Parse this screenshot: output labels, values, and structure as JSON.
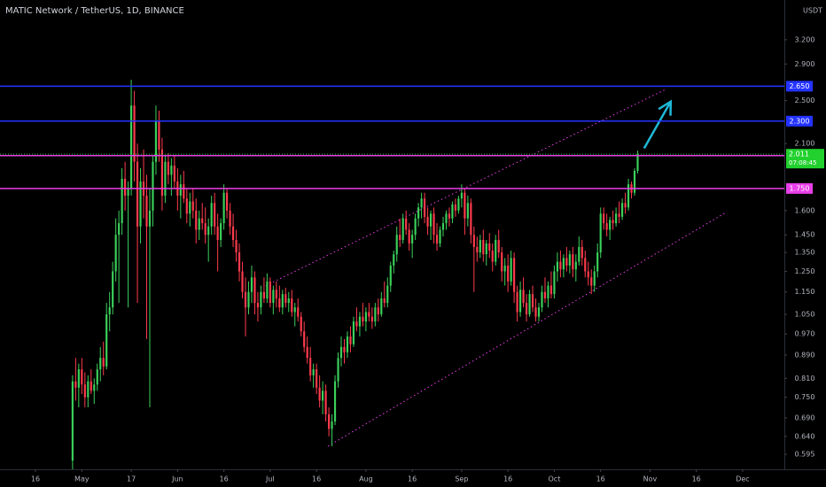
{
  "chart_data": {
    "type": "candlestick",
    "title": "MATIC Network / TetherUS, 1D, BINANCE",
    "currency": "USDT",
    "log": true,
    "ylim": [
      0.56,
      3.76
    ],
    "xlim": [
      -11.5,
      242.5
    ],
    "up_color": "#3bd15b",
    "down_color": "#ff3b4d",
    "yticks": [
      {
        "value": 3.2,
        "label": "3.200"
      },
      {
        "value": 2.9,
        "label": "2.900"
      },
      {
        "value": 2.5,
        "label": "2.500"
      },
      {
        "value": 2.1,
        "label": "2.100"
      },
      {
        "value": 1.6,
        "label": "1.600"
      },
      {
        "value": 1.45,
        "label": "1.450"
      },
      {
        "value": 1.35,
        "label": "1.350"
      },
      {
        "value": 1.25,
        "label": "1.250"
      },
      {
        "value": 1.15,
        "label": "1.150"
      },
      {
        "value": 1.05,
        "label": "1.050"
      },
      {
        "value": 0.97,
        "label": "0.970"
      },
      {
        "value": 0.89,
        "label": "0.890"
      },
      {
        "value": 0.81,
        "label": "0.810"
      },
      {
        "value": 0.75,
        "label": "0.750"
      },
      {
        "value": 0.69,
        "label": "0.690"
      },
      {
        "value": 0.64,
        "label": "0.640"
      },
      {
        "value": 0.595,
        "label": "0.595"
      }
    ],
    "xticks": [
      {
        "value": 0,
        "label": "16"
      },
      {
        "value": 15,
        "label": "May"
      },
      {
        "value": 31,
        "label": "17"
      },
      {
        "value": 46,
        "label": "Jun"
      },
      {
        "value": 61,
        "label": "16"
      },
      {
        "value": 76,
        "label": "Jul"
      },
      {
        "value": 91,
        "label": "16"
      },
      {
        "value": 107,
        "label": "Aug"
      },
      {
        "value": 122,
        "label": "16"
      },
      {
        "value": 138,
        "label": "Sep"
      },
      {
        "value": 153,
        "label": "16"
      },
      {
        "value": 168,
        "label": "Oct"
      },
      {
        "value": 183,
        "label": "16"
      },
      {
        "value": 199,
        "label": "Nov"
      },
      {
        "value": 214,
        "label": "16"
      },
      {
        "value": 229,
        "label": "Dec"
      }
    ],
    "price_lines": [
      {
        "value": 2.65,
        "label": "2.650",
        "color": "#2433ff"
      },
      {
        "value": 2.3,
        "label": "2.300",
        "color": "#2433ff"
      },
      {
        "value": 2.0,
        "label": "2.000",
        "color": "#e83ee8"
      },
      {
        "value": 1.75,
        "label": "1.750",
        "color": "#e83ee8"
      }
    ],
    "last_price": {
      "value": 2.011,
      "label": "2.011",
      "countdown": "07:08:45",
      "color": "#22d12e"
    },
    "trendlines": [
      {
        "x": [
          74.6,
          204.3
        ],
        "y": [
          1.18,
          2.62
        ],
        "color": "#e83ee8"
      },
      {
        "x": [
          94.7,
          223.8
        ],
        "y": [
          0.615,
          1.59
        ],
        "color": "#e83ee8"
      }
    ],
    "arrow": {
      "x": [
        197.1,
        205.7
      ],
      "y": [
        2.06,
        2.49
      ],
      "color": "#1fb8d6"
    },
    "ohlc": [
      [
        12,
        0.58,
        0.82,
        0.56,
        0.8
      ],
      [
        13,
        0.8,
        0.88,
        0.74,
        0.78
      ],
      [
        14,
        0.78,
        0.86,
        0.72,
        0.84
      ],
      [
        15,
        0.84,
        0.88,
        0.76,
        0.79
      ],
      [
        16,
        0.79,
        0.83,
        0.72,
        0.75
      ],
      [
        17,
        0.75,
        0.82,
        0.72,
        0.8
      ],
      [
        18,
        0.8,
        0.84,
        0.76,
        0.77
      ],
      [
        19,
        0.77,
        0.81,
        0.73,
        0.79
      ],
      [
        20,
        0.79,
        0.86,
        0.77,
        0.84
      ],
      [
        21,
        0.84,
        0.92,
        0.8,
        0.88
      ],
      [
        22,
        0.88,
        0.94,
        0.82,
        0.85
      ],
      [
        23,
        0.85,
        1.1,
        0.84,
        1.05
      ],
      [
        24,
        1.05,
        1.15,
        0.98,
        1.08
      ],
      [
        25,
        1.08,
        1.3,
        1.05,
        1.25
      ],
      [
        26,
        1.25,
        1.55,
        1.2,
        1.45
      ],
      [
        27,
        1.45,
        1.6,
        1.1,
        1.52
      ],
      [
        28,
        1.52,
        1.9,
        1.45,
        1.82
      ],
      [
        29,
        1.82,
        1.95,
        1.6,
        1.7
      ],
      [
        30,
        1.7,
        1.8,
        1.08,
        1.75
      ],
      [
        31,
        1.75,
        2.72,
        1.7,
        2.45
      ],
      [
        32,
        2.45,
        2.6,
        1.8,
        1.95
      ],
      [
        33,
        1.95,
        2.1,
        1.1,
        1.5
      ],
      [
        34,
        1.5,
        1.9,
        1.4,
        1.8
      ],
      [
        35,
        1.8,
        2.05,
        1.55,
        1.7
      ],
      [
        36,
        1.7,
        1.85,
        0.95,
        1.5
      ],
      [
        37,
        1.5,
        1.75,
        0.72,
        1.6
      ],
      [
        38,
        1.6,
        2.0,
        1.5,
        1.95
      ],
      [
        39,
        1.95,
        2.45,
        1.85,
        2.3
      ],
      [
        40,
        2.3,
        2.4,
        1.95,
        2.05
      ],
      [
        41,
        2.05,
        2.15,
        1.6,
        1.7
      ],
      [
        42,
        1.7,
        2.0,
        1.65,
        1.95
      ],
      [
        43,
        1.95,
        2.02,
        1.78,
        1.85
      ],
      [
        44,
        1.85,
        1.98,
        1.7,
        1.92
      ],
      [
        45,
        1.92,
        2.0,
        1.75,
        1.8
      ],
      [
        46,
        1.8,
        1.9,
        1.6,
        1.7
      ],
      [
        47,
        1.7,
        1.85,
        1.55,
        1.78
      ],
      [
        48,
        1.78,
        1.88,
        1.65,
        1.68
      ],
      [
        49,
        1.68,
        1.75,
        1.52,
        1.58
      ],
      [
        50,
        1.58,
        1.72,
        1.5,
        1.66
      ],
      [
        51,
        1.66,
        1.75,
        1.55,
        1.6
      ],
      [
        52,
        1.6,
        1.68,
        1.4,
        1.48
      ],
      [
        53,
        1.48,
        1.6,
        1.42,
        1.55
      ],
      [
        54,
        1.55,
        1.65,
        1.48,
        1.52
      ],
      [
        55,
        1.52,
        1.62,
        1.4,
        1.45
      ],
      [
        56,
        1.45,
        1.55,
        1.3,
        1.5
      ],
      [
        57,
        1.5,
        1.7,
        1.45,
        1.65
      ],
      [
        58,
        1.65,
        1.72,
        1.45,
        1.5
      ],
      [
        59,
        1.5,
        1.58,
        1.25,
        1.42
      ],
      [
        60,
        1.42,
        1.55,
        1.38,
        1.52
      ],
      [
        61,
        1.52,
        1.78,
        1.48,
        1.72
      ],
      [
        62,
        1.72,
        1.75,
        1.55,
        1.6
      ],
      [
        63,
        1.6,
        1.65,
        1.45,
        1.5
      ],
      [
        64,
        1.5,
        1.58,
        1.38,
        1.42
      ],
      [
        65,
        1.42,
        1.48,
        1.3,
        1.35
      ],
      [
        66,
        1.35,
        1.4,
        1.2,
        1.25
      ],
      [
        67,
        1.25,
        1.3,
        1.12,
        1.15
      ],
      [
        68,
        1.15,
        1.22,
        0.96,
        1.08
      ],
      [
        69,
        1.08,
        1.2,
        1.05,
        1.15
      ],
      [
        70,
        1.15,
        1.28,
        1.1,
        1.22
      ],
      [
        71,
        1.22,
        1.25,
        1.05,
        1.1
      ],
      [
        72,
        1.1,
        1.15,
        1.02,
        1.08
      ],
      [
        73,
        1.08,
        1.18,
        1.05,
        1.15
      ],
      [
        74,
        1.15,
        1.22,
        1.1,
        1.12
      ],
      [
        75,
        1.12,
        1.24,
        1.1,
        1.2
      ],
      [
        76,
        1.2,
        1.22,
        1.08,
        1.1
      ],
      [
        77,
        1.1,
        1.18,
        1.05,
        1.16
      ],
      [
        78,
        1.16,
        1.2,
        1.08,
        1.12
      ],
      [
        79,
        1.12,
        1.18,
        1.06,
        1.08
      ],
      [
        80,
        1.08,
        1.16,
        1.05,
        1.14
      ],
      [
        81,
        1.14,
        1.17,
        1.08,
        1.1
      ],
      [
        82,
        1.1,
        1.15,
        1.06,
        1.12
      ],
      [
        83,
        1.12,
        1.16,
        1.04,
        1.06
      ],
      [
        84,
        1.06,
        1.1,
        1.0,
        1.08
      ],
      [
        85,
        1.08,
        1.12,
        1.02,
        1.04
      ],
      [
        86,
        1.04,
        1.06,
        0.96,
        0.98
      ],
      [
        87,
        0.98,
        1.02,
        0.9,
        0.92
      ],
      [
        88,
        0.92,
        0.96,
        0.86,
        0.88
      ],
      [
        89,
        0.88,
        0.92,
        0.8,
        0.82
      ],
      [
        90,
        0.82,
        0.86,
        0.78,
        0.84
      ],
      [
        91,
        0.84,
        0.86,
        0.76,
        0.78
      ],
      [
        92,
        0.78,
        0.82,
        0.72,
        0.74
      ],
      [
        93,
        0.74,
        0.8,
        0.7,
        0.77
      ],
      [
        94,
        0.77,
        0.79,
        0.68,
        0.7
      ],
      [
        95,
        0.7,
        0.72,
        0.64,
        0.66
      ],
      [
        96,
        0.66,
        0.7,
        0.615,
        0.68
      ],
      [
        97,
        0.68,
        0.82,
        0.67,
        0.8
      ],
      [
        98,
        0.8,
        0.9,
        0.78,
        0.88
      ],
      [
        99,
        0.88,
        0.96,
        0.85,
        0.92
      ],
      [
        100,
        0.92,
        0.95,
        0.86,
        0.9
      ],
      [
        101,
        0.9,
        0.98,
        0.88,
        0.96
      ],
      [
        102,
        0.96,
        1.0,
        0.9,
        0.93
      ],
      [
        103,
        0.93,
        1.04,
        0.92,
        1.02
      ],
      [
        104,
        1.02,
        1.08,
        0.98,
        1.0
      ],
      [
        105,
        1.0,
        1.06,
        0.96,
        1.04
      ],
      [
        106,
        1.04,
        1.1,
        1.0,
        1.02
      ],
      [
        107,
        1.02,
        1.08,
        0.98,
        1.06
      ],
      [
        108,
        1.06,
        1.1,
        1.02,
        1.04
      ],
      [
        109,
        1.04,
        1.08,
        0.99,
        1.02
      ],
      [
        110,
        1.02,
        1.1,
        1.0,
        1.08
      ],
      [
        111,
        1.08,
        1.12,
        1.02,
        1.05
      ],
      [
        112,
        1.05,
        1.15,
        1.04,
        1.12
      ],
      [
        113,
        1.12,
        1.2,
        1.08,
        1.1
      ],
      [
        114,
        1.1,
        1.22,
        1.08,
        1.18
      ],
      [
        115,
        1.18,
        1.3,
        1.15,
        1.28
      ],
      [
        116,
        1.28,
        1.36,
        1.24,
        1.34
      ],
      [
        117,
        1.34,
        1.5,
        1.3,
        1.45
      ],
      [
        118,
        1.45,
        1.55,
        1.38,
        1.42
      ],
      [
        119,
        1.42,
        1.58,
        1.4,
        1.55
      ],
      [
        120,
        1.55,
        1.6,
        1.45,
        1.48
      ],
      [
        121,
        1.48,
        1.52,
        1.36,
        1.4
      ],
      [
        122,
        1.4,
        1.48,
        1.32,
        1.45
      ],
      [
        123,
        1.45,
        1.58,
        1.42,
        1.55
      ],
      [
        124,
        1.55,
        1.65,
        1.5,
        1.62
      ],
      [
        125,
        1.62,
        1.72,
        1.55,
        1.68
      ],
      [
        126,
        1.68,
        1.72,
        1.52,
        1.56
      ],
      [
        127,
        1.56,
        1.62,
        1.45,
        1.5
      ],
      [
        128,
        1.5,
        1.6,
        1.42,
        1.58
      ],
      [
        129,
        1.58,
        1.62,
        1.4,
        1.45
      ],
      [
        130,
        1.45,
        1.52,
        1.36,
        1.4
      ],
      [
        131,
        1.4,
        1.5,
        1.38,
        1.48
      ],
      [
        132,
        1.48,
        1.56,
        1.44,
        1.52
      ],
      [
        133,
        1.52,
        1.6,
        1.48,
        1.58
      ],
      [
        134,
        1.58,
        1.62,
        1.5,
        1.55
      ],
      [
        135,
        1.55,
        1.66,
        1.52,
        1.64
      ],
      [
        136,
        1.64,
        1.68,
        1.56,
        1.6
      ],
      [
        137,
        1.6,
        1.7,
        1.58,
        1.68
      ],
      [
        138,
        1.68,
        1.78,
        1.62,
        1.72
      ],
      [
        139,
        1.72,
        1.75,
        1.45,
        1.55
      ],
      [
        140,
        1.55,
        1.7,
        1.5,
        1.65
      ],
      [
        141,
        1.65,
        1.68,
        1.4,
        1.45
      ],
      [
        142,
        1.45,
        1.5,
        1.15,
        1.38
      ],
      [
        143,
        1.38,
        1.44,
        1.3,
        1.35
      ],
      [
        144,
        1.35,
        1.45,
        1.32,
        1.42
      ],
      [
        145,
        1.42,
        1.48,
        1.3,
        1.34
      ],
      [
        146,
        1.34,
        1.42,
        1.28,
        1.4
      ],
      [
        147,
        1.4,
        1.46,
        1.32,
        1.36
      ],
      [
        148,
        1.36,
        1.4,
        1.25,
        1.3
      ],
      [
        149,
        1.3,
        1.45,
        1.28,
        1.42
      ],
      [
        150,
        1.42,
        1.48,
        1.32,
        1.35
      ],
      [
        151,
        1.35,
        1.38,
        1.2,
        1.25
      ],
      [
        152,
        1.25,
        1.32,
        1.18,
        1.28
      ],
      [
        153,
        1.28,
        1.34,
        1.15,
        1.2
      ],
      [
        154,
        1.2,
        1.36,
        1.18,
        1.32
      ],
      [
        155,
        1.32,
        1.35,
        1.1,
        1.15
      ],
      [
        156,
        1.15,
        1.18,
        1.02,
        1.06
      ],
      [
        157,
        1.06,
        1.2,
        1.04,
        1.16
      ],
      [
        158,
        1.16,
        1.22,
        1.08,
        1.1
      ],
      [
        159,
        1.1,
        1.14,
        1.02,
        1.05
      ],
      [
        160,
        1.05,
        1.16,
        1.04,
        1.14
      ],
      [
        161,
        1.14,
        1.18,
        1.06,
        1.08
      ],
      [
        162,
        1.08,
        1.12,
        1.02,
        1.04
      ],
      [
        163,
        1.04,
        1.1,
        1.02,
        1.08
      ],
      [
        164,
        1.08,
        1.18,
        1.06,
        1.15
      ],
      [
        165,
        1.15,
        1.22,
        1.1,
        1.12
      ],
      [
        166,
        1.12,
        1.2,
        1.08,
        1.18
      ],
      [
        167,
        1.18,
        1.25,
        1.12,
        1.14
      ],
      [
        168,
        1.14,
        1.28,
        1.12,
        1.25
      ],
      [
        169,
        1.25,
        1.35,
        1.2,
        1.3
      ],
      [
        170,
        1.3,
        1.36,
        1.22,
        1.26
      ],
      [
        171,
        1.26,
        1.34,
        1.22,
        1.32
      ],
      [
        172,
        1.32,
        1.38,
        1.25,
        1.28
      ],
      [
        173,
        1.28,
        1.36,
        1.24,
        1.34
      ],
      [
        174,
        1.34,
        1.38,
        1.22,
        1.26
      ],
      [
        175,
        1.26,
        1.34,
        1.2,
        1.3
      ],
      [
        176,
        1.3,
        1.44,
        1.28,
        1.38
      ],
      [
        177,
        1.38,
        1.42,
        1.28,
        1.32
      ],
      [
        178,
        1.32,
        1.36,
        1.22,
        1.25
      ],
      [
        179,
        1.25,
        1.3,
        1.18,
        1.22
      ],
      [
        180,
        1.22,
        1.26,
        1.14,
        1.18
      ],
      [
        181,
        1.18,
        1.28,
        1.15,
        1.25
      ],
      [
        182,
        1.25,
        1.4,
        1.22,
        1.35
      ],
      [
        183,
        1.35,
        1.62,
        1.32,
        1.58
      ],
      [
        184,
        1.58,
        1.62,
        1.48,
        1.52
      ],
      [
        185,
        1.52,
        1.58,
        1.44,
        1.48
      ],
      [
        186,
        1.48,
        1.56,
        1.42,
        1.54
      ],
      [
        187,
        1.54,
        1.6,
        1.48,
        1.52
      ],
      [
        188,
        1.52,
        1.62,
        1.5,
        1.58
      ],
      [
        189,
        1.58,
        1.66,
        1.52,
        1.56
      ],
      [
        190,
        1.56,
        1.68,
        1.54,
        1.65
      ],
      [
        191,
        1.65,
        1.72,
        1.58,
        1.62
      ],
      [
        192,
        1.62,
        1.82,
        1.6,
        1.78
      ],
      [
        193,
        1.78,
        1.8,
        1.68,
        1.72
      ],
      [
        194,
        1.72,
        1.9,
        1.7,
        1.88
      ],
      [
        195,
        1.88,
        2.04,
        1.86,
        2.011
      ]
    ]
  }
}
